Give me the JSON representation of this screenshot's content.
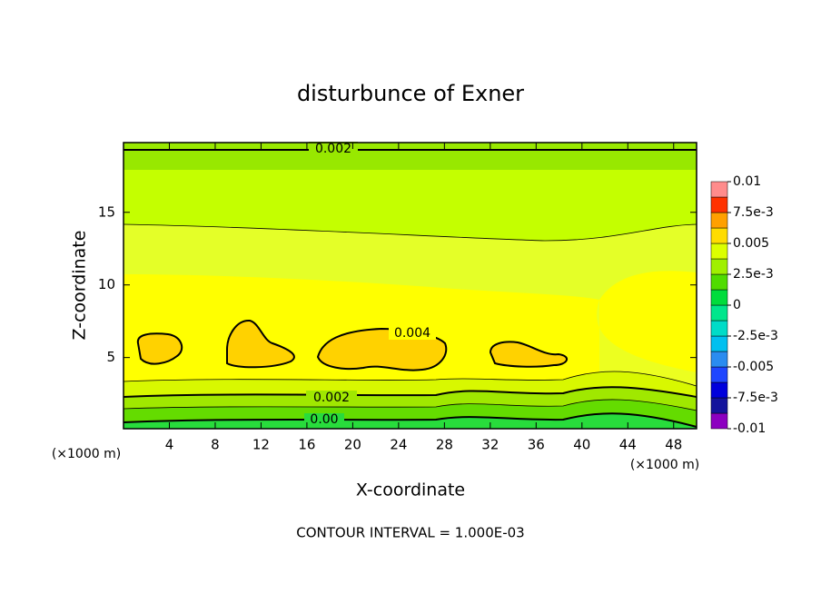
{
  "chart_data": {
    "type": "contour",
    "title": "disturbunce of Exner",
    "x_label": "X-coordinate",
    "y_label": "Z-coordinate",
    "x_unit": "(×1000 m)",
    "footer": "CONTOUR INTERVAL = 1.000E-03",
    "xlim": [
      0,
      50
    ],
    "xticks": [
      4,
      8,
      12,
      16,
      20,
      24,
      28,
      32,
      36,
      40,
      44,
      48
    ],
    "ylim": [
      0.1,
      19.8
    ],
    "yticks": [
      5,
      10,
      15
    ],
    "contour_labels": [
      "0.002",
      "0.004",
      "0.002",
      "0.00"
    ],
    "colorbar": {
      "levels": [
        -0.01,
        -0.00875,
        -0.0075,
        -0.00625,
        -0.005,
        -0.00375,
        -0.0025,
        -0.00125,
        0,
        0.00125,
        0.0025,
        0.00375,
        0.005,
        0.00625,
        0.0075,
        0.00875,
        0.01
      ],
      "colors": [
        "#8c00c0",
        "#14149c",
        "#0000dc",
        "#1e46ff",
        "#2a8cf0",
        "#00c0f0",
        "#00dcc8",
        "#00e68c",
        "#00dc3c",
        "#50dc00",
        "#a0f000",
        "#dcff00",
        "#ffdc00",
        "#ffa000",
        "#ff3200",
        "#ff8c8c"
      ],
      "ticks": [
        0.01,
        {
          "value": 0.0075,
          "label": "7.5e-3"
        },
        0.005,
        {
          "value": 0.0025,
          "label": "2.5e-3"
        },
        0,
        {
          "value": -0.0025,
          "label": "-2.5e-3"
        },
        -0.005,
        {
          "value": -0.0075,
          "label": "-7.5e-3"
        },
        -0.01
      ]
    }
  }
}
